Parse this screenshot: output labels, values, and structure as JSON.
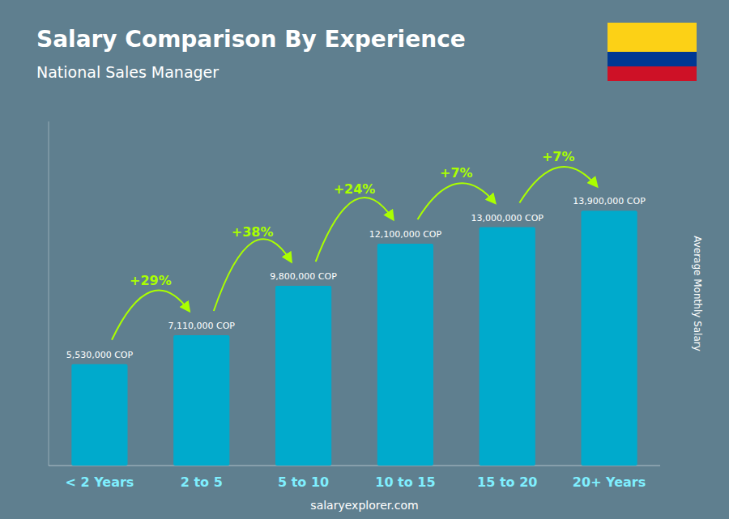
{
  "chart_data": {
    "type": "bar",
    "title": "Salary Comparison By Experience",
    "subtitle": "National Sales Manager",
    "ylabel": "Average Monthly Salary",
    "footer": "salaryexplorer.com",
    "categories": [
      "< 2 Years",
      "2 to 5",
      "5 to 10",
      "10 to 15",
      "15 to 20",
      "20+ Years"
    ],
    "values": [
      5530000,
      7110000,
      9800000,
      12100000,
      13000000,
      13900000
    ],
    "value_labels": [
      "5,530,000 COP",
      "7,110,000 COP",
      "9,800,000 COP",
      "12,100,000 COP",
      "13,000,000 COP",
      "13,900,000 COP"
    ],
    "annotations": [
      null,
      "+29%",
      "+38%",
      "+24%",
      "+7%",
      "+7%"
    ],
    "color": "#00aacc",
    "ylim": [
      0,
      18765000
    ],
    "yticks": [],
    "grid": false,
    "data_labels": true,
    "tick_labels": "x"
  }
}
